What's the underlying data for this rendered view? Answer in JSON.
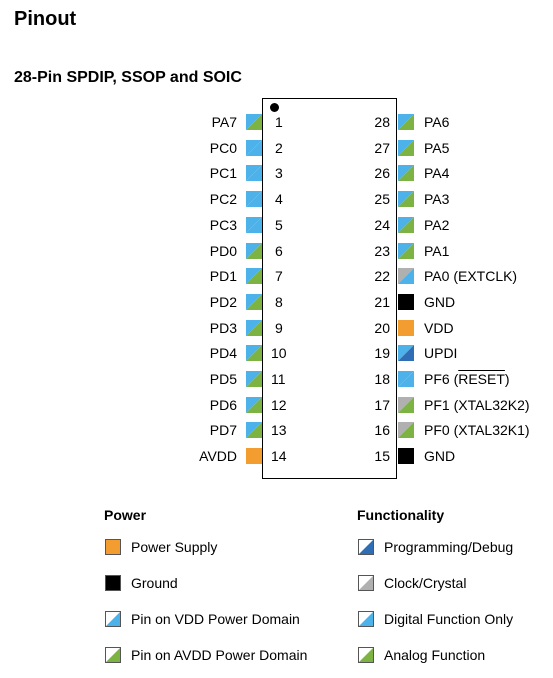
{
  "title": "Pinout",
  "subtitle": "28-Pin SPDIP, SSOP and SOIC",
  "colors": {
    "power_supply": "#f39c2f",
    "ground": "#000000",
    "vdd_domain": "#4db2ea",
    "avdd_domain": "#7cb342",
    "programming_dark": "#2f6db5",
    "clock_gray": "#b0b0b0"
  },
  "left_pins": [
    {
      "num": "1",
      "name": "PA7",
      "domain": "avdd",
      "func": "analog"
    },
    {
      "num": "2",
      "name": "PC0",
      "domain": "vdd",
      "func": "digital"
    },
    {
      "num": "3",
      "name": "PC1",
      "domain": "vdd",
      "func": "digital"
    },
    {
      "num": "4",
      "name": "PC2",
      "domain": "vdd",
      "func": "digital"
    },
    {
      "num": "5",
      "name": "PC3",
      "domain": "vdd",
      "func": "digital"
    },
    {
      "num": "6",
      "name": "PD0",
      "domain": "avdd",
      "func": "analog"
    },
    {
      "num": "7",
      "name": "PD1",
      "domain": "avdd",
      "func": "analog"
    },
    {
      "num": "8",
      "name": "PD2",
      "domain": "avdd",
      "func": "analog"
    },
    {
      "num": "9",
      "name": "PD3",
      "domain": "avdd",
      "func": "analog"
    },
    {
      "num": "10",
      "name": "PD4",
      "domain": "avdd",
      "func": "analog"
    },
    {
      "num": "11",
      "name": "PD5",
      "domain": "avdd",
      "func": "analog"
    },
    {
      "num": "12",
      "name": "PD6",
      "domain": "avdd",
      "func": "analog"
    },
    {
      "num": "13",
      "name": "PD7",
      "domain": "avdd",
      "func": "analog"
    },
    {
      "num": "14",
      "name": "AVDD",
      "domain": "power",
      "func": "power"
    }
  ],
  "right_pins": [
    {
      "num": "28",
      "name": "PA6",
      "domain": "avdd",
      "func": "analog"
    },
    {
      "num": "27",
      "name": "PA5",
      "domain": "avdd",
      "func": "analog"
    },
    {
      "num": "26",
      "name": "PA4",
      "domain": "avdd",
      "func": "analog"
    },
    {
      "num": "25",
      "name": "PA3",
      "domain": "avdd",
      "func": "analog"
    },
    {
      "num": "24",
      "name": "PA2",
      "domain": "avdd",
      "func": "analog"
    },
    {
      "num": "23",
      "name": "PA1",
      "domain": "avdd",
      "func": "analog"
    },
    {
      "num": "22",
      "name": "PA0 (EXTCLK)",
      "domain": "avdd",
      "func": "clock-digital"
    },
    {
      "num": "21",
      "name": "GND",
      "domain": "ground",
      "func": "ground"
    },
    {
      "num": "20",
      "name": "VDD",
      "domain": "power",
      "func": "power"
    },
    {
      "num": "19",
      "name": "UPDI",
      "domain": "vdd",
      "func": "programming"
    },
    {
      "num": "18",
      "name_pre": "PF6 (",
      "name_over": "RESET",
      "name_post": ")",
      "domain": "vdd",
      "func": "digital"
    },
    {
      "num": "17",
      "name": "PF1 (XTAL32K2)",
      "domain": "avdd",
      "func": "clock"
    },
    {
      "num": "16",
      "name": "PF0 (XTAL32K1)",
      "domain": "avdd",
      "func": "clock"
    },
    {
      "num": "15",
      "name": "GND",
      "domain": "ground",
      "func": "ground"
    }
  ],
  "legend": {
    "power_title": "Power",
    "functionality_title": "Functionality",
    "power_items": [
      {
        "label": "Power Supply",
        "swatch": "power"
      },
      {
        "label": "Ground",
        "swatch": "ground"
      },
      {
        "label": "Pin on VDD Power Domain",
        "swatch": "vdd"
      },
      {
        "label": "Pin on AVDD Power Domain",
        "swatch": "avdd"
      }
    ],
    "func_items": [
      {
        "label": "Programming/Debug",
        "swatch": "programming"
      },
      {
        "label": "Clock/Crystal",
        "swatch": "clock"
      },
      {
        "label": "Digital Function Only",
        "swatch": "digital"
      },
      {
        "label": "Analog Function",
        "swatch": "analog"
      }
    ]
  }
}
